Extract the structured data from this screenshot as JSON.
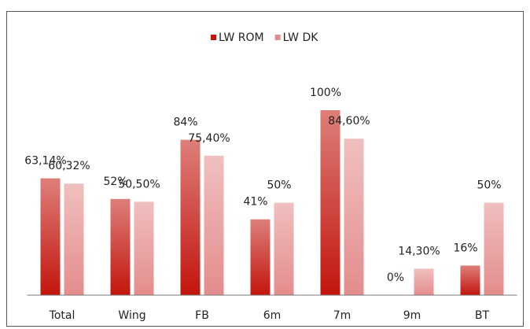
{
  "chart_data": {
    "type": "bar",
    "categories": [
      "Total",
      "Wing",
      "FB",
      "6m",
      "7m",
      "9m",
      "BT"
    ],
    "series": [
      {
        "name": "LW ROM",
        "color": "#c2150d",
        "values": [
          63.14,
          52,
          84,
          41,
          100,
          0,
          16
        ],
        "value_labels": [
          "63,14%",
          "52%",
          "84%",
          "41%",
          "100%",
          "0%",
          "16%"
        ]
      },
      {
        "name": "LW DK",
        "color": "#e48c8c",
        "values": [
          60.32,
          50.5,
          75.4,
          50,
          84.6,
          14.3,
          50
        ],
        "value_labels": [
          "60,32%",
          "50,50%",
          "75,40%",
          "50%",
          "84,60%",
          "14,30%",
          "50%"
        ]
      }
    ],
    "ylim": [
      0,
      100
    ],
    "legend": "top"
  }
}
